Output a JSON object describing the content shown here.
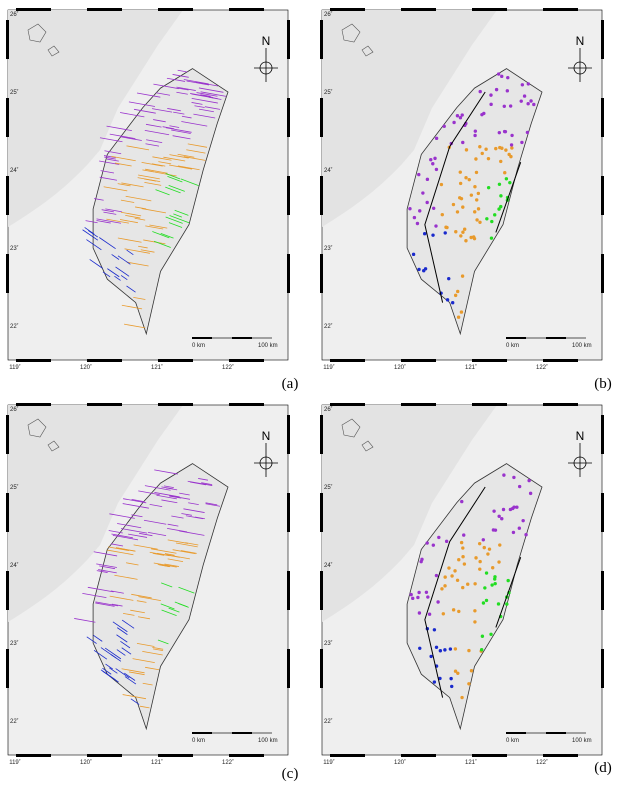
{
  "panels": [
    {
      "label": "(a)",
      "x_ticks": [
        "119˚",
        "120˚",
        "121˚",
        "122˚"
      ],
      "y_ticks": [
        "26˚",
        "25˚",
        "24˚",
        "23˚",
        "22˚"
      ],
      "north": "N",
      "scale": [
        "0 km",
        "100 km"
      ]
    },
    {
      "label": "(b)",
      "x_ticks": [
        "119˚",
        "120˚",
        "121˚",
        "122˚"
      ],
      "y_ticks": [
        "26˚",
        "25˚",
        "24˚",
        "23˚",
        "22˚"
      ],
      "north": "N",
      "scale": [
        "0 km",
        "100 km"
      ]
    },
    {
      "label": "(c)",
      "x_ticks": [
        "119˚",
        "120˚",
        "121˚",
        "122˚"
      ],
      "y_ticks": [
        "26˚",
        "25˚",
        "24˚",
        "23˚",
        "22˚"
      ],
      "north": "N",
      "scale": [
        "0 km",
        "100 km"
      ]
    },
    {
      "label": "(d)",
      "x_ticks": [
        "119˚",
        "120˚",
        "121˚",
        "122˚"
      ],
      "y_ticks": [
        "26˚",
        "25˚",
        "24˚",
        "23˚",
        "22˚"
      ],
      "north": "N",
      "scale": [
        "0 km",
        "100 km"
      ]
    }
  ]
}
